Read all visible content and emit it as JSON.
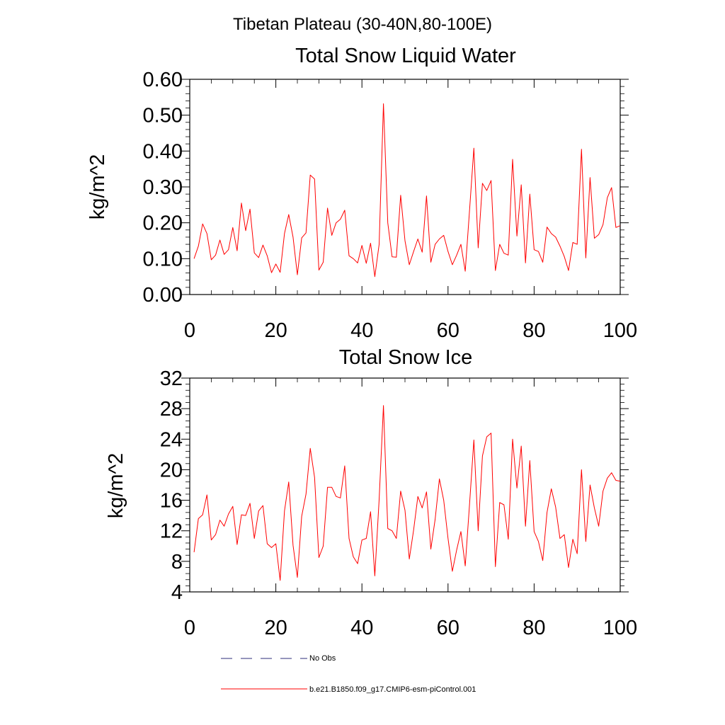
{
  "page_title": "Tibetan Plateau (30-40N,80-100E)",
  "colors": {
    "model_line": "#ff0000",
    "obs_line": "#2c2c7a",
    "axis": "#000000"
  },
  "legend": {
    "items": [
      {
        "label": "No Obs",
        "style": "dashed",
        "color": "#2c2c7a"
      },
      {
        "label": "b.e21.B1850.f09_g17.CMIP6-esm-piControl.001",
        "style": "solid",
        "color": "#ff0000"
      }
    ]
  },
  "chart_data": [
    {
      "type": "line",
      "title": "Total Snow Liquid Water",
      "ylabel": "kg/m^2",
      "xlabel": "",
      "xlim": [
        0,
        100
      ],
      "ylim": [
        0,
        0.6
      ],
      "xticks": [
        0,
        20,
        40,
        60,
        80,
        100
      ],
      "xtick_labels": [
        "0",
        "20",
        "40",
        "60",
        "80",
        "100"
      ],
      "yticks": [
        0,
        0.1,
        0.2,
        0.3,
        0.4,
        0.5,
        0.6
      ],
      "ytick_labels": [
        "0.00",
        "0.10",
        "0.20",
        "0.30",
        "0.40",
        "0.50",
        "0.60"
      ],
      "series": [
        {
          "name": "b.e21.B1850.f09_g17.CMIP6-esm-piControl.001",
          "x": [
            1,
            2,
            3,
            4,
            5,
            6,
            7,
            8,
            9,
            10,
            11,
            12,
            13,
            14,
            15,
            16,
            17,
            18,
            19,
            20,
            21,
            22,
            23,
            24,
            25,
            26,
            27,
            28,
            29,
            30,
            31,
            32,
            33,
            34,
            35,
            36,
            37,
            38,
            39,
            40,
            41,
            42,
            43,
            44,
            45,
            46,
            47,
            48,
            49,
            50,
            51,
            52,
            53,
            54,
            55,
            56,
            57,
            58,
            59,
            60,
            61,
            62,
            63,
            64,
            65,
            66,
            67,
            68,
            69,
            70,
            71,
            72,
            73,
            74,
            75,
            76,
            77,
            78,
            79,
            80,
            81,
            82,
            83,
            84,
            85,
            86,
            87,
            88,
            89,
            90,
            91,
            92,
            93,
            94,
            95,
            96,
            97,
            98,
            99,
            100
          ],
          "values": [
            0.1,
            0.135,
            0.197,
            0.17,
            0.097,
            0.11,
            0.152,
            0.112,
            0.125,
            0.187,
            0.122,
            0.255,
            0.178,
            0.238,
            0.116,
            0.103,
            0.138,
            0.108,
            0.061,
            0.085,
            0.062,
            0.17,
            0.223,
            0.16,
            0.055,
            0.158,
            0.172,
            0.333,
            0.322,
            0.068,
            0.09,
            0.241,
            0.165,
            0.2,
            0.21,
            0.235,
            0.108,
            0.1,
            0.088,
            0.137,
            0.087,
            0.143,
            0.05,
            0.14,
            0.532,
            0.2,
            0.105,
            0.104,
            0.277,
            0.15,
            0.083,
            0.12,
            0.155,
            0.118,
            0.275,
            0.09,
            0.14,
            0.155,
            0.165,
            0.12,
            0.083,
            0.11,
            0.14,
            0.065,
            0.235,
            0.408,
            0.13,
            0.31,
            0.29,
            0.318,
            0.067,
            0.14,
            0.115,
            0.11,
            0.377,
            0.163,
            0.306,
            0.088,
            0.28,
            0.125,
            0.12,
            0.09,
            0.188,
            0.17,
            0.16,
            0.135,
            0.106,
            0.067,
            0.145,
            0.14,
            0.405,
            0.102,
            0.326,
            0.157,
            0.167,
            0.195,
            0.27,
            0.298,
            0.187,
            0.192
          ]
        }
      ]
    },
    {
      "type": "line",
      "title": "Total Snow Ice",
      "ylabel": "kg/m^2",
      "xlabel": "",
      "xlim": [
        0,
        100
      ],
      "ylim": [
        4,
        32
      ],
      "xticks": [
        0,
        20,
        40,
        60,
        80,
        100
      ],
      "xtick_labels": [
        "0",
        "20",
        "40",
        "60",
        "80",
        "100"
      ],
      "yticks": [
        4,
        8,
        12,
        16,
        20,
        24,
        28,
        32
      ],
      "ytick_labels": [
        "4",
        "8",
        "12",
        "16",
        "20",
        "24",
        "28",
        "32"
      ],
      "series": [
        {
          "name": "b.e21.B1850.f09_g17.CMIP6-esm-piControl.001",
          "x": [
            1,
            2,
            3,
            4,
            5,
            6,
            7,
            8,
            9,
            10,
            11,
            12,
            13,
            14,
            15,
            16,
            17,
            18,
            19,
            20,
            21,
            22,
            23,
            24,
            25,
            26,
            27,
            28,
            29,
            30,
            31,
            32,
            33,
            34,
            35,
            36,
            37,
            38,
            39,
            40,
            41,
            42,
            43,
            44,
            45,
            46,
            47,
            48,
            49,
            50,
            51,
            52,
            53,
            54,
            55,
            56,
            57,
            58,
            59,
            60,
            61,
            62,
            63,
            64,
            65,
            66,
            67,
            68,
            69,
            70,
            71,
            72,
            73,
            74,
            75,
            76,
            77,
            78,
            79,
            80,
            81,
            82,
            83,
            84,
            85,
            86,
            87,
            88,
            89,
            90,
            91,
            92,
            93,
            94,
            95,
            96,
            97,
            98,
            99,
            100
          ],
          "values": [
            9.2,
            13.6,
            14.1,
            16.7,
            10.8,
            11.5,
            13.4,
            12.6,
            14.2,
            15.2,
            10.2,
            14.1,
            14.0,
            15.6,
            11.0,
            14.6,
            15.3,
            10.3,
            9.8,
            10.3,
            5.5,
            14.6,
            18.4,
            10.1,
            5.9,
            13.9,
            16.8,
            22.8,
            19.0,
            8.5,
            10.0,
            17.7,
            17.7,
            16.5,
            16.3,
            20.5,
            11.0,
            8.6,
            7.7,
            10.8,
            11.0,
            14.5,
            6.1,
            16.1,
            28.4,
            12.3,
            12.0,
            11.0,
            17.2,
            14.7,
            8.3,
            12.1,
            16.5,
            15.0,
            17.1,
            9.6,
            13.5,
            18.8,
            16.0,
            11.0,
            6.7,
            9.5,
            11.9,
            7.4,
            15.5,
            23.9,
            12.0,
            21.8,
            24.3,
            24.8,
            7.3,
            15.7,
            15.4,
            10.9,
            24.0,
            17.6,
            23.1,
            12.6,
            21.2,
            11.9,
            10.6,
            8.1,
            14.4,
            17.5,
            15.1,
            11.0,
            11.5,
            7.2,
            10.9,
            9.0,
            20.0,
            10.6,
            18.0,
            15.0,
            12.6,
            17.2,
            18.9,
            19.6,
            18.6,
            18.5
          ]
        }
      ]
    }
  ]
}
